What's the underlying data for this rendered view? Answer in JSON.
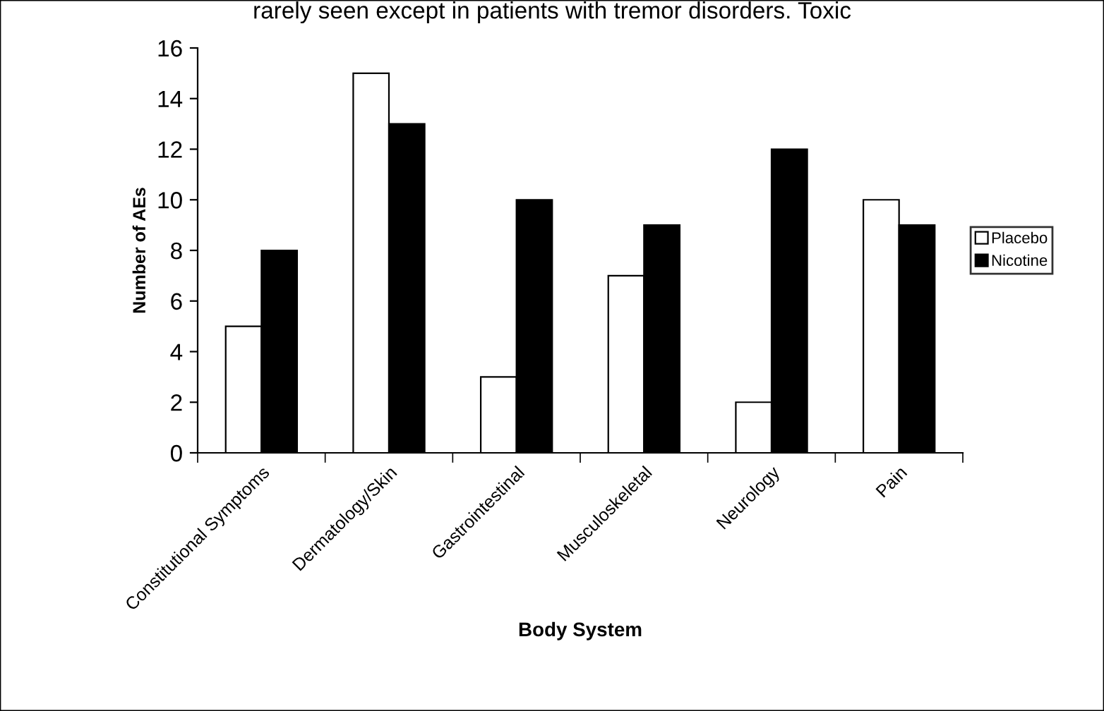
{
  "chart_data": {
    "type": "bar",
    "xlabel": "Body System",
    "ylabel": "Number of AEs",
    "categories": [
      "Constitutional Symptoms",
      "Dermatology/Skin",
      "Gastrointestinal",
      "Musculoskeletal",
      "Neurology",
      "Pain"
    ],
    "series": [
      {
        "name": "Placebo",
        "color": "#ffffff",
        "values": [
          5,
          15,
          3,
          7,
          2,
          10
        ]
      },
      {
        "name": "Nicotine",
        "color": "#000000",
        "values": [
          8,
          13,
          10,
          9,
          12,
          9
        ]
      }
    ],
    "ylim": [
      0,
      16
    ],
    "yticks": [
      0,
      2,
      4,
      6,
      8,
      10,
      12,
      14,
      16
    ],
    "grid": false,
    "legend": "right",
    "annotations": [
      "rarely seen except in patients with tremor disorders. Toxic"
    ]
  }
}
